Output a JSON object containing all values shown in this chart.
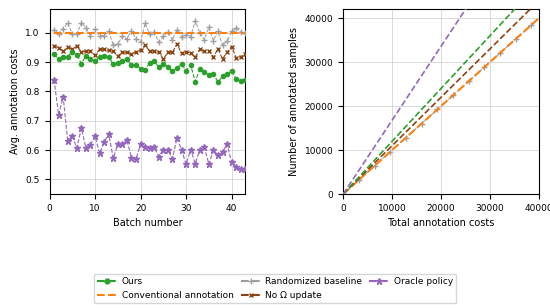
{
  "left_xlabel": "Batch number",
  "left_ylabel": "Avg. annotation costs",
  "right_xlabel": "Total annotation costs",
  "right_ylabel": "Number of annotated samples",
  "left_xlim": [
    0,
    43
  ],
  "left_ylim": [
    0.45,
    1.08
  ],
  "right_xlim": [
    0,
    40000
  ],
  "right_ylim": [
    0,
    42000
  ],
  "left_xticks": [
    0,
    10,
    20,
    30,
    40
  ],
  "right_xticks": [
    0,
    10000,
    20000,
    30000,
    40000
  ],
  "right_yticks": [
    0,
    10000,
    20000,
    30000,
    40000
  ],
  "colors": {
    "ours": "#2ca02c",
    "conventional": "#ff7f0e",
    "randomized": "#9e9e9e",
    "no_omega": "#8b4513",
    "oracle": "#9467bd"
  },
  "right_slopes": {
    "oracle": 1.68,
    "ours": 1.2,
    "no_omega": 1.1,
    "conventional": 1.0,
    "randomized": 1.0
  },
  "figsize": [
    5.5,
    3.08
  ],
  "dpi": 100
}
